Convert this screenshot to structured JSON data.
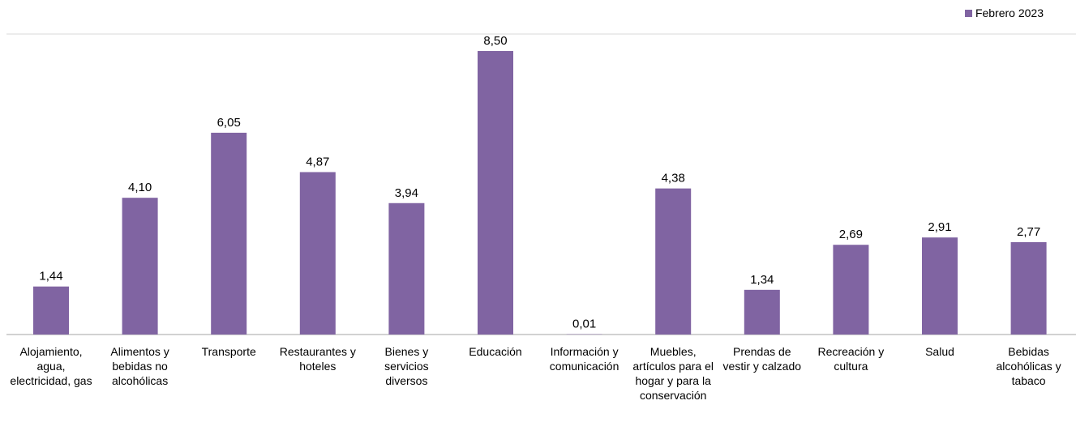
{
  "legend": {
    "label": "Febrero 2023"
  },
  "colors": {
    "bar": "#8064A2",
    "axis": "#a6a6a6",
    "grid": "#d9d9d9"
  },
  "chart_data": {
    "type": "bar",
    "categories": [
      "Alojamiento, agua, electricidad, gas",
      "Alimentos y bebidas no alcohólicas",
      "Transporte",
      "Restaurantes y hoteles",
      "Bienes y servicios diversos",
      "Educación",
      "Información y comunicación",
      "Muebles, artículos para el hogar y para la conservación",
      "Prendas de vestir y calzado",
      "Recreación y cultura",
      "Salud",
      "Bebidas alcohólicas y tabaco"
    ],
    "series": [
      {
        "name": "Febrero 2023",
        "values": [
          1.44,
          4.1,
          6.05,
          4.87,
          3.94,
          8.5,
          0.01,
          4.38,
          1.34,
          2.69,
          2.91,
          2.77
        ],
        "labels": [
          "1,44",
          "4,10",
          "6,05",
          "4,87",
          "3,94",
          "8,50",
          "0,01",
          "4,38",
          "1,34",
          "2,69",
          "2,91",
          "2,77"
        ]
      }
    ],
    "ylim": [
      0,
      8.5
    ],
    "legend_position": "top-right"
  }
}
